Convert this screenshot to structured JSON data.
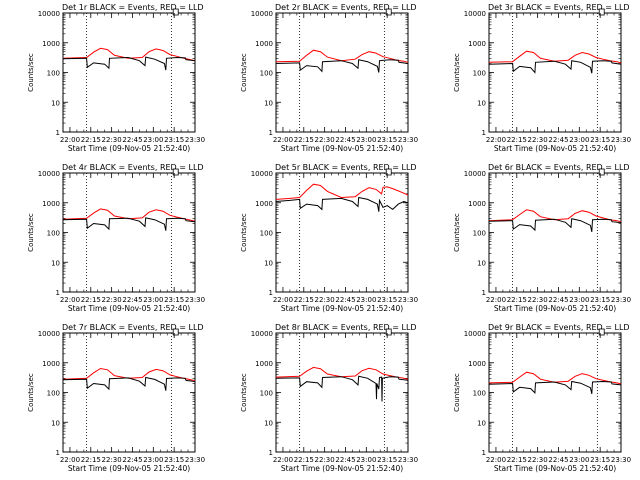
{
  "chart_data": [
    {
      "type": "line",
      "title": "Det 1r BLACK = Events, RED = LLD",
      "ylabel": "Counts/sec",
      "xlabel": "Start Time (09-Nov-05 21:52:40)",
      "scale_y": "log",
      "ylim": [
        1,
        10000
      ],
      "x_ticks": [
        "22:00",
        "22:15",
        "22:30",
        "22:45",
        "23:00",
        "23:15",
        "23:30"
      ],
      "y_ticks": [
        "1",
        "10",
        "100",
        "1000",
        "10000"
      ],
      "x_domain": [
        0,
        95
      ],
      "vlines": [
        17,
        78
      ],
      "series": [
        {
          "color": "#ff0000",
          "x": [
            0,
            17,
            22,
            27,
            32,
            37,
            47,
            57,
            62,
            67,
            72,
            77,
            82,
            87,
            92,
            95
          ],
          "y": [
            300,
            320,
            480,
            650,
            590,
            380,
            300,
            320,
            500,
            620,
            550,
            400,
            350,
            300,
            270,
            250
          ]
        },
        {
          "color": "#000000",
          "x": [
            0,
            17,
            17.5,
            22,
            30,
            33,
            33.5,
            47,
            55,
            59,
            59.5,
            66,
            73,
            74,
            74.5,
            82,
            88,
            88.5,
            95
          ],
          "y": [
            290,
            300,
            150,
            210,
            190,
            140,
            300,
            320,
            250,
            170,
            330,
            280,
            200,
            120,
            300,
            320,
            310,
            270,
            250
          ]
        }
      ]
    },
    {
      "type": "line",
      "title": "Det 2r BLACK = Events, RED = LLD",
      "ylabel": "Counts/sec",
      "xlabel": "Start Time (09-Nov-05 21:52:40)",
      "scale_y": "log",
      "ylim": [
        1,
        10000
      ],
      "x_ticks": [
        "22:00",
        "22:15",
        "22:30",
        "22:45",
        "23:00",
        "23:15",
        "23:30"
      ],
      "y_ticks": [
        "1",
        "10",
        "100",
        "1000",
        "10000"
      ],
      "x_domain": [
        0,
        95
      ],
      "vlines": [
        17,
        78
      ],
      "series": [
        {
          "color": "#ff0000",
          "x": [
            0,
            17,
            22,
            27,
            32,
            37,
            47,
            57,
            62,
            67,
            72,
            77,
            82,
            87,
            92,
            95
          ],
          "y": [
            230,
            240,
            380,
            560,
            500,
            330,
            250,
            280,
            400,
            500,
            450,
            340,
            300,
            260,
            240,
            220
          ]
        },
        {
          "color": "#000000",
          "x": [
            0,
            17,
            17.5,
            22,
            30,
            33,
            33.5,
            47,
            55,
            59,
            59.5,
            66,
            73,
            74,
            74.5,
            82,
            88,
            88.5,
            95
          ],
          "y": [
            200,
            210,
            120,
            170,
            155,
            110,
            230,
            250,
            200,
            140,
            270,
            230,
            160,
            100,
            250,
            270,
            260,
            220,
            200
          ]
        }
      ]
    },
    {
      "type": "line",
      "title": "Det 3r BLACK = Events, RED = LLD",
      "ylabel": "Counts/sec",
      "xlabel": "Start Time (09-Nov-05 21:52:40)",
      "scale_y": "log",
      "ylim": [
        1,
        10000
      ],
      "x_ticks": [
        "22:00",
        "22:15",
        "22:30",
        "22:45",
        "23:00",
        "23:15",
        "23:30"
      ],
      "y_ticks": [
        "1",
        "10",
        "100",
        "1000",
        "10000"
      ],
      "x_domain": [
        0,
        95
      ],
      "vlines": [
        17,
        78
      ],
      "series": [
        {
          "color": "#ff0000",
          "x": [
            0,
            17,
            22,
            27,
            32,
            37,
            47,
            57,
            62,
            67,
            72,
            77,
            82,
            87,
            92,
            95
          ],
          "y": [
            220,
            230,
            350,
            520,
            470,
            300,
            240,
            260,
            380,
            470,
            420,
            320,
            280,
            250,
            230,
            210
          ]
        },
        {
          "color": "#000000",
          "x": [
            0,
            17,
            17.5,
            22,
            30,
            33,
            33.5,
            47,
            55,
            59,
            59.5,
            66,
            73,
            74,
            74.5,
            82,
            88,
            88.5,
            95
          ],
          "y": [
            190,
            200,
            110,
            160,
            145,
            100,
            220,
            240,
            190,
            130,
            250,
            220,
            150,
            95,
            240,
            250,
            240,
            210,
            190
          ]
        }
      ]
    },
    {
      "type": "line",
      "title": "Det 4r BLACK = Events, RED = LLD",
      "ylabel": "Counts/sec",
      "xlabel": "Start Time (09-Nov-05 21:52:40)",
      "scale_y": "log",
      "ylim": [
        1,
        10000
      ],
      "x_ticks": [
        "22:00",
        "22:15",
        "22:30",
        "22:45",
        "23:00",
        "23:15",
        "23:30"
      ],
      "y_ticks": [
        "1",
        "10",
        "100",
        "1000",
        "10000"
      ],
      "x_domain": [
        0,
        95
      ],
      "vlines": [
        17,
        78
      ],
      "series": [
        {
          "color": "#ff0000",
          "x": [
            0,
            17,
            22,
            27,
            32,
            37,
            47,
            57,
            62,
            67,
            72,
            77,
            82,
            87,
            92,
            95
          ],
          "y": [
            280,
            300,
            450,
            620,
            560,
            360,
            290,
            310,
            480,
            580,
            520,
            380,
            330,
            290,
            260,
            240
          ]
        },
        {
          "color": "#000000",
          "x": [
            0,
            17,
            17.5,
            22,
            30,
            33,
            33.5,
            47,
            55,
            59,
            59.5,
            66,
            73,
            74,
            74.5,
            82,
            88,
            88.5,
            95
          ],
          "y": [
            270,
            280,
            140,
            200,
            180,
            130,
            290,
            300,
            240,
            160,
            310,
            270,
            190,
            115,
            290,
            300,
            290,
            250,
            230
          ]
        }
      ]
    },
    {
      "type": "line",
      "title": "Det 5r BLACK = Events, RED = LLD",
      "ylabel": "Counts/sec",
      "xlabel": "Start Time (09-Nov-05 21:52:40)",
      "scale_y": "log",
      "ylim": [
        1,
        10000
      ],
      "x_ticks": [
        "22:00",
        "22:15",
        "22:30",
        "22:45",
        "23:00",
        "23:15",
        "23:30"
      ],
      "y_ticks": [
        "1",
        "10",
        "100",
        "1000",
        "10000"
      ],
      "x_domain": [
        0,
        95
      ],
      "vlines": [
        17,
        78
      ],
      "series": [
        {
          "color": "#ff0000",
          "x": [
            0,
            10,
            17,
            22,
            27,
            32,
            37,
            47,
            57,
            62,
            67,
            72,
            76,
            77,
            80,
            84,
            88,
            92,
            95
          ],
          "y": [
            1300,
            1400,
            1500,
            2600,
            4200,
            3800,
            2400,
            1500,
            1600,
            2400,
            3200,
            2800,
            2000,
            3300,
            3400,
            3000,
            2500,
            2100,
            1800
          ]
        },
        {
          "color": "#000000",
          "x": [
            0,
            10,
            17,
            17.5,
            22,
            30,
            33,
            33.5,
            47,
            55,
            59,
            59.5,
            66,
            73,
            74,
            74.5,
            77,
            80,
            84,
            88,
            92,
            95
          ],
          "y": [
            1100,
            1200,
            1300,
            650,
            900,
            800,
            600,
            1300,
            1400,
            1100,
            750,
            1500,
            1300,
            900,
            500,
            1200,
            700,
            800,
            600,
            900,
            1100,
            1000
          ]
        }
      ]
    },
    {
      "type": "line",
      "title": "Det 6r BLACK = Events, RED = LLD",
      "ylabel": "Counts/sec",
      "xlabel": "Start Time (09-Nov-05 21:52:40)",
      "scale_y": "log",
      "ylim": [
        1,
        10000
      ],
      "x_ticks": [
        "22:00",
        "22:15",
        "22:30",
        "22:45",
        "23:00",
        "23:15",
        "23:30"
      ],
      "y_ticks": [
        "1",
        "10",
        "100",
        "1000",
        "10000"
      ],
      "x_domain": [
        0,
        95
      ],
      "vlines": [
        17,
        78
      ],
      "series": [
        {
          "color": "#ff0000",
          "x": [
            0,
            17,
            22,
            27,
            32,
            37,
            47,
            57,
            62,
            67,
            72,
            77,
            82,
            87,
            92,
            95
          ],
          "y": [
            250,
            270,
            400,
            580,
            520,
            340,
            270,
            290,
            440,
            540,
            480,
            360,
            310,
            270,
            250,
            230
          ]
        },
        {
          "color": "#000000",
          "x": [
            0,
            17,
            17.5,
            22,
            30,
            33,
            33.5,
            47,
            55,
            59,
            59.5,
            66,
            73,
            74,
            74.5,
            82,
            88,
            88.5,
            95
          ],
          "y": [
            240,
            250,
            130,
            185,
            165,
            120,
            260,
            280,
            220,
            150,
            290,
            250,
            175,
            105,
            270,
            280,
            270,
            230,
            215
          ]
        }
      ]
    },
    {
      "type": "line",
      "title": "Det 7r BLACK = Events, RED = LLD",
      "ylabel": "Counts/sec",
      "xlabel": "Start Time (09-Nov-05 21:52:40)",
      "scale_y": "log",
      "ylim": [
        1,
        10000
      ],
      "x_ticks": [
        "22:00",
        "22:15",
        "22:30",
        "22:45",
        "23:00",
        "23:15",
        "23:30"
      ],
      "y_ticks": [
        "1",
        "10",
        "100",
        "1000",
        "10000"
      ],
      "x_domain": [
        0,
        95
      ],
      "vlines": [
        17,
        78
      ],
      "series": [
        {
          "color": "#ff0000",
          "x": [
            0,
            17,
            22,
            27,
            32,
            37,
            47,
            57,
            62,
            67,
            72,
            77,
            82,
            87,
            92,
            95
          ],
          "y": [
            280,
            300,
            460,
            640,
            580,
            370,
            300,
            320,
            490,
            600,
            540,
            390,
            340,
            300,
            270,
            250
          ]
        },
        {
          "color": "#000000",
          "x": [
            0,
            17,
            17.5,
            22,
            30,
            33,
            33.5,
            47,
            55,
            59,
            59.5,
            66,
            73,
            74,
            74.5,
            82,
            88,
            88.5,
            95
          ],
          "y": [
            270,
            280,
            140,
            200,
            180,
            130,
            290,
            310,
            240,
            165,
            320,
            275,
            190,
            115,
            295,
            310,
            300,
            255,
            235
          ]
        }
      ]
    },
    {
      "type": "line",
      "title": "Det 8r BLACK = Events, RED = LLD",
      "ylabel": "Counts/sec",
      "xlabel": "Start Time (09-Nov-05 21:52:40)",
      "scale_y": "log",
      "ylim": [
        1,
        10000
      ],
      "x_ticks": [
        "22:00",
        "22:15",
        "22:30",
        "22:45",
        "23:00",
        "23:15",
        "23:30"
      ],
      "y_ticks": [
        "1",
        "10",
        "100",
        "1000",
        "10000"
      ],
      "x_domain": [
        0,
        95
      ],
      "vlines": [
        17,
        78
      ],
      "series": [
        {
          "color": "#ff0000",
          "x": [
            0,
            17,
            22,
            27,
            32,
            37,
            47,
            57,
            62,
            67,
            72,
            77,
            82,
            87,
            92,
            95
          ],
          "y": [
            330,
            350,
            520,
            700,
            630,
            420,
            340,
            360,
            540,
            650,
            580,
            420,
            370,
            330,
            300,
            280
          ]
        },
        {
          "color": "#000000",
          "x": [
            0,
            17,
            17.5,
            22,
            30,
            33,
            33.5,
            47,
            55,
            59,
            59.5,
            66,
            72,
            72.3,
            72.6,
            74,
            74.5,
            76,
            76.3,
            76.6,
            82,
            88,
            88.5,
            95
          ],
          "y": [
            300,
            310,
            160,
            230,
            210,
            150,
            320,
            340,
            270,
            180,
            350,
            300,
            200,
            60,
            200,
            130,
            320,
            330,
            50,
            300,
            340,
            330,
            280,
            260
          ]
        }
      ]
    },
    {
      "type": "line",
      "title": "Det 9r BLACK = Events, RED = LLD",
      "ylabel": "Counts/sec",
      "xlabel": "Start Time (09-Nov-05 21:52:40)",
      "scale_y": "log",
      "ylim": [
        1,
        10000
      ],
      "x_ticks": [
        "22:00",
        "22:15",
        "22:30",
        "22:45",
        "23:00",
        "23:15",
        "23:30"
      ],
      "y_ticks": [
        "1",
        "10",
        "100",
        "1000",
        "10000"
      ],
      "x_domain": [
        0,
        95
      ],
      "vlines": [
        17,
        78
      ],
      "series": [
        {
          "color": "#ff0000",
          "x": [
            0,
            17,
            22,
            27,
            32,
            37,
            47,
            57,
            62,
            67,
            72,
            77,
            82,
            87,
            92,
            95
          ],
          "y": [
            210,
            220,
            330,
            480,
            430,
            280,
            220,
            240,
            350,
            430,
            380,
            290,
            260,
            230,
            210,
            195
          ]
        },
        {
          "color": "#000000",
          "x": [
            0,
            17,
            17.5,
            22,
            30,
            33,
            33.5,
            47,
            55,
            59,
            59.5,
            66,
            73,
            74,
            74.5,
            82,
            88,
            88.5,
            95
          ],
          "y": [
            190,
            200,
            105,
            150,
            135,
            98,
            210,
            225,
            180,
            125,
            235,
            205,
            145,
            90,
            225,
            235,
            225,
            195,
            180
          ]
        }
      ]
    }
  ]
}
